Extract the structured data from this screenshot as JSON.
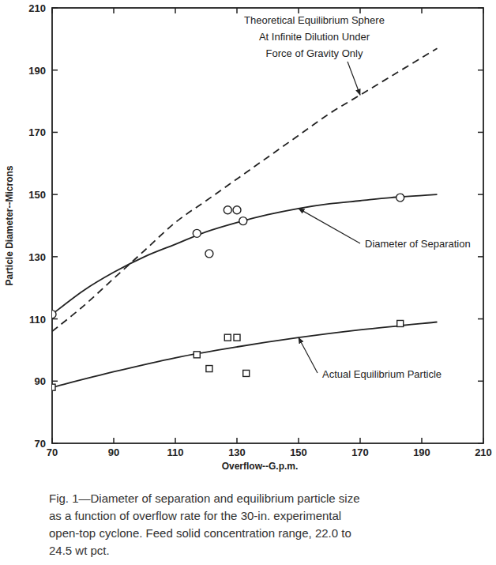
{
  "chart_data": {
    "type": "line",
    "caption": [
      "Fig. 1—Diameter of separation and equilibrium particle size",
      "as a function of overflow rate for the 30-in. experimental",
      "open-top cyclone. Feed solid concentration range, 22.0 to",
      "24.5 wt pct."
    ],
    "x_label": "Overflow--G.p.m.",
    "y_label": "Particle Diameter--Microns",
    "xlim": [
      70,
      210
    ],
    "xticks": [
      70,
      90,
      110,
      130,
      150,
      170,
      190,
      210
    ],
    "ylim": [
      70,
      210
    ],
    "yticks": [
      70,
      90,
      110,
      130,
      150,
      170,
      190,
      210
    ],
    "grid": false,
    "series": [
      {
        "name": "Theoretical Equilibrium Sphere\nAt Infinite Dilution Under\nForce of Gravity Only",
        "type": "line",
        "line_style": "dashed",
        "color": "#222222",
        "x": [
          70,
          80,
          90,
          100,
          110,
          120,
          130,
          140,
          150,
          160,
          170,
          180,
          190,
          195
        ],
        "values": [
          106,
          114,
          123,
          132,
          141,
          148,
          155,
          162,
          169,
          176,
          182,
          188,
          194,
          197
        ]
      },
      {
        "name": "Diameter of Separation",
        "type": "line",
        "line_style": "solid",
        "color": "#222222",
        "x": [
          70,
          80,
          90,
          100,
          110,
          120,
          130,
          140,
          150,
          160,
          170,
          180,
          195
        ],
        "values": [
          111.5,
          119,
          125,
          130,
          134,
          138,
          141,
          143.5,
          145.5,
          147,
          148,
          149,
          150
        ]
      },
      {
        "type": "scatter",
        "marker": "circle",
        "color": "#222222",
        "x": [
          70,
          117,
          121,
          127,
          130,
          132,
          183
        ],
        "values": [
          111.5,
          137.5,
          131,
          145,
          145,
          141.5,
          149
        ]
      },
      {
        "name": "Actual Equilibrium Particle",
        "type": "line",
        "line_style": "solid",
        "color": "#222222",
        "x": [
          70,
          90,
          110,
          130,
          150,
          170,
          195
        ],
        "values": [
          88,
          93,
          97.5,
          101,
          104,
          106.5,
          109
        ]
      },
      {
        "type": "scatter",
        "marker": "square",
        "color": "#222222",
        "x": [
          70,
          117,
          121,
          127,
          130,
          133,
          183
        ],
        "values": [
          88,
          98.5,
          94,
          104,
          104,
          92.5,
          108.5
        ]
      }
    ]
  }
}
